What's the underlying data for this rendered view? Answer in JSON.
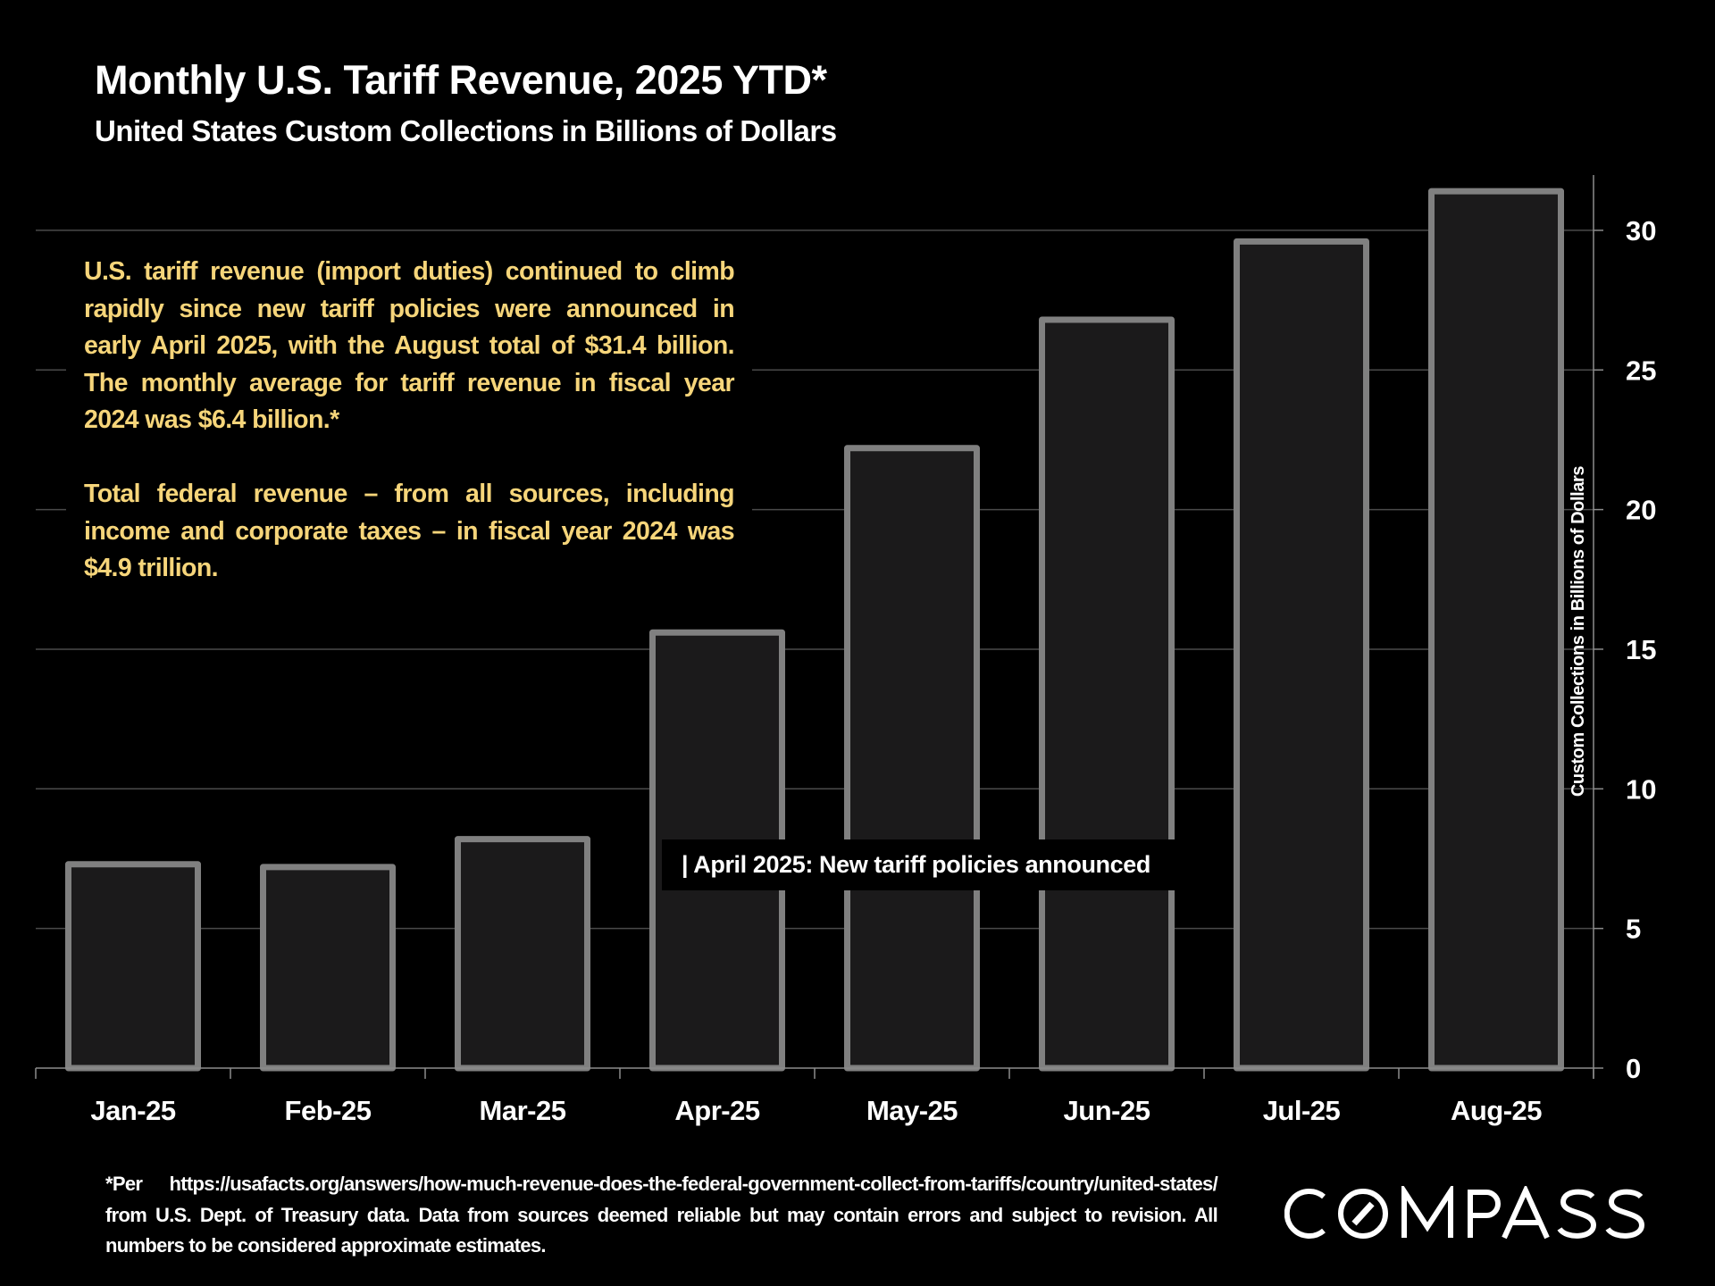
{
  "header": {
    "title": "Monthly U.S. Tariff Revenue, 2025 YTD*",
    "subtitle": "United States Custom Collections in Billions of Dollars"
  },
  "notes": {
    "paragraph_1": "U.S. tariff revenue (import duties) continued to climb rapidly since new tariff policies were announced in early April 2025, with the August total of $31.4 billion. The monthly average for tariff revenue in fiscal year 2024 was $6.4 billion.*",
    "paragraph_2": "Total federal revenue – from all sources, including income and corporate taxes – in fiscal year 2024 was $4.9 trillion."
  },
  "annotation": {
    "text": "| April 2025:  New tariff policies announced"
  },
  "footer": {
    "text": "*Per https://usafacts.org/answers/how-much-revenue-does-the-federal-government-collect-from-tariffs/country/united-states/ from U.S. Dept. of Treasury data. Data from sources deemed reliable but may contain errors and subject to revision. All numbers to be considered approximate estimates."
  },
  "brand": {
    "logo_text": "COMPASS"
  },
  "colors": {
    "background": "#000000",
    "bar_fill": "#1b1a1b",
    "bar_stroke": "#808080",
    "gridline": "#4a4a4a",
    "axis": "#8c8c8c",
    "note_text": "#f6d57a",
    "text": "#ffffff"
  },
  "chart_data": {
    "type": "bar",
    "title": "Monthly U.S. Tariff Revenue, 2025 YTD*",
    "subtitle": "United States Custom Collections in Billions of Dollars",
    "xlabel": "",
    "ylabel": "Custom Collections in Billions of Dollars",
    "y_axis_side": "right",
    "categories": [
      "Jan-25",
      "Feb-25",
      "Mar-25",
      "Apr-25",
      "May-25",
      "Jun-25",
      "Jul-25",
      "Aug-25"
    ],
    "values": [
      7.3,
      7.2,
      8.2,
      15.6,
      22.2,
      26.8,
      29.6,
      31.4
    ],
    "ylim": [
      0,
      32
    ],
    "yticks": [
      0,
      5,
      10,
      15,
      20,
      25,
      30
    ],
    "grid": true,
    "legend": "none"
  }
}
